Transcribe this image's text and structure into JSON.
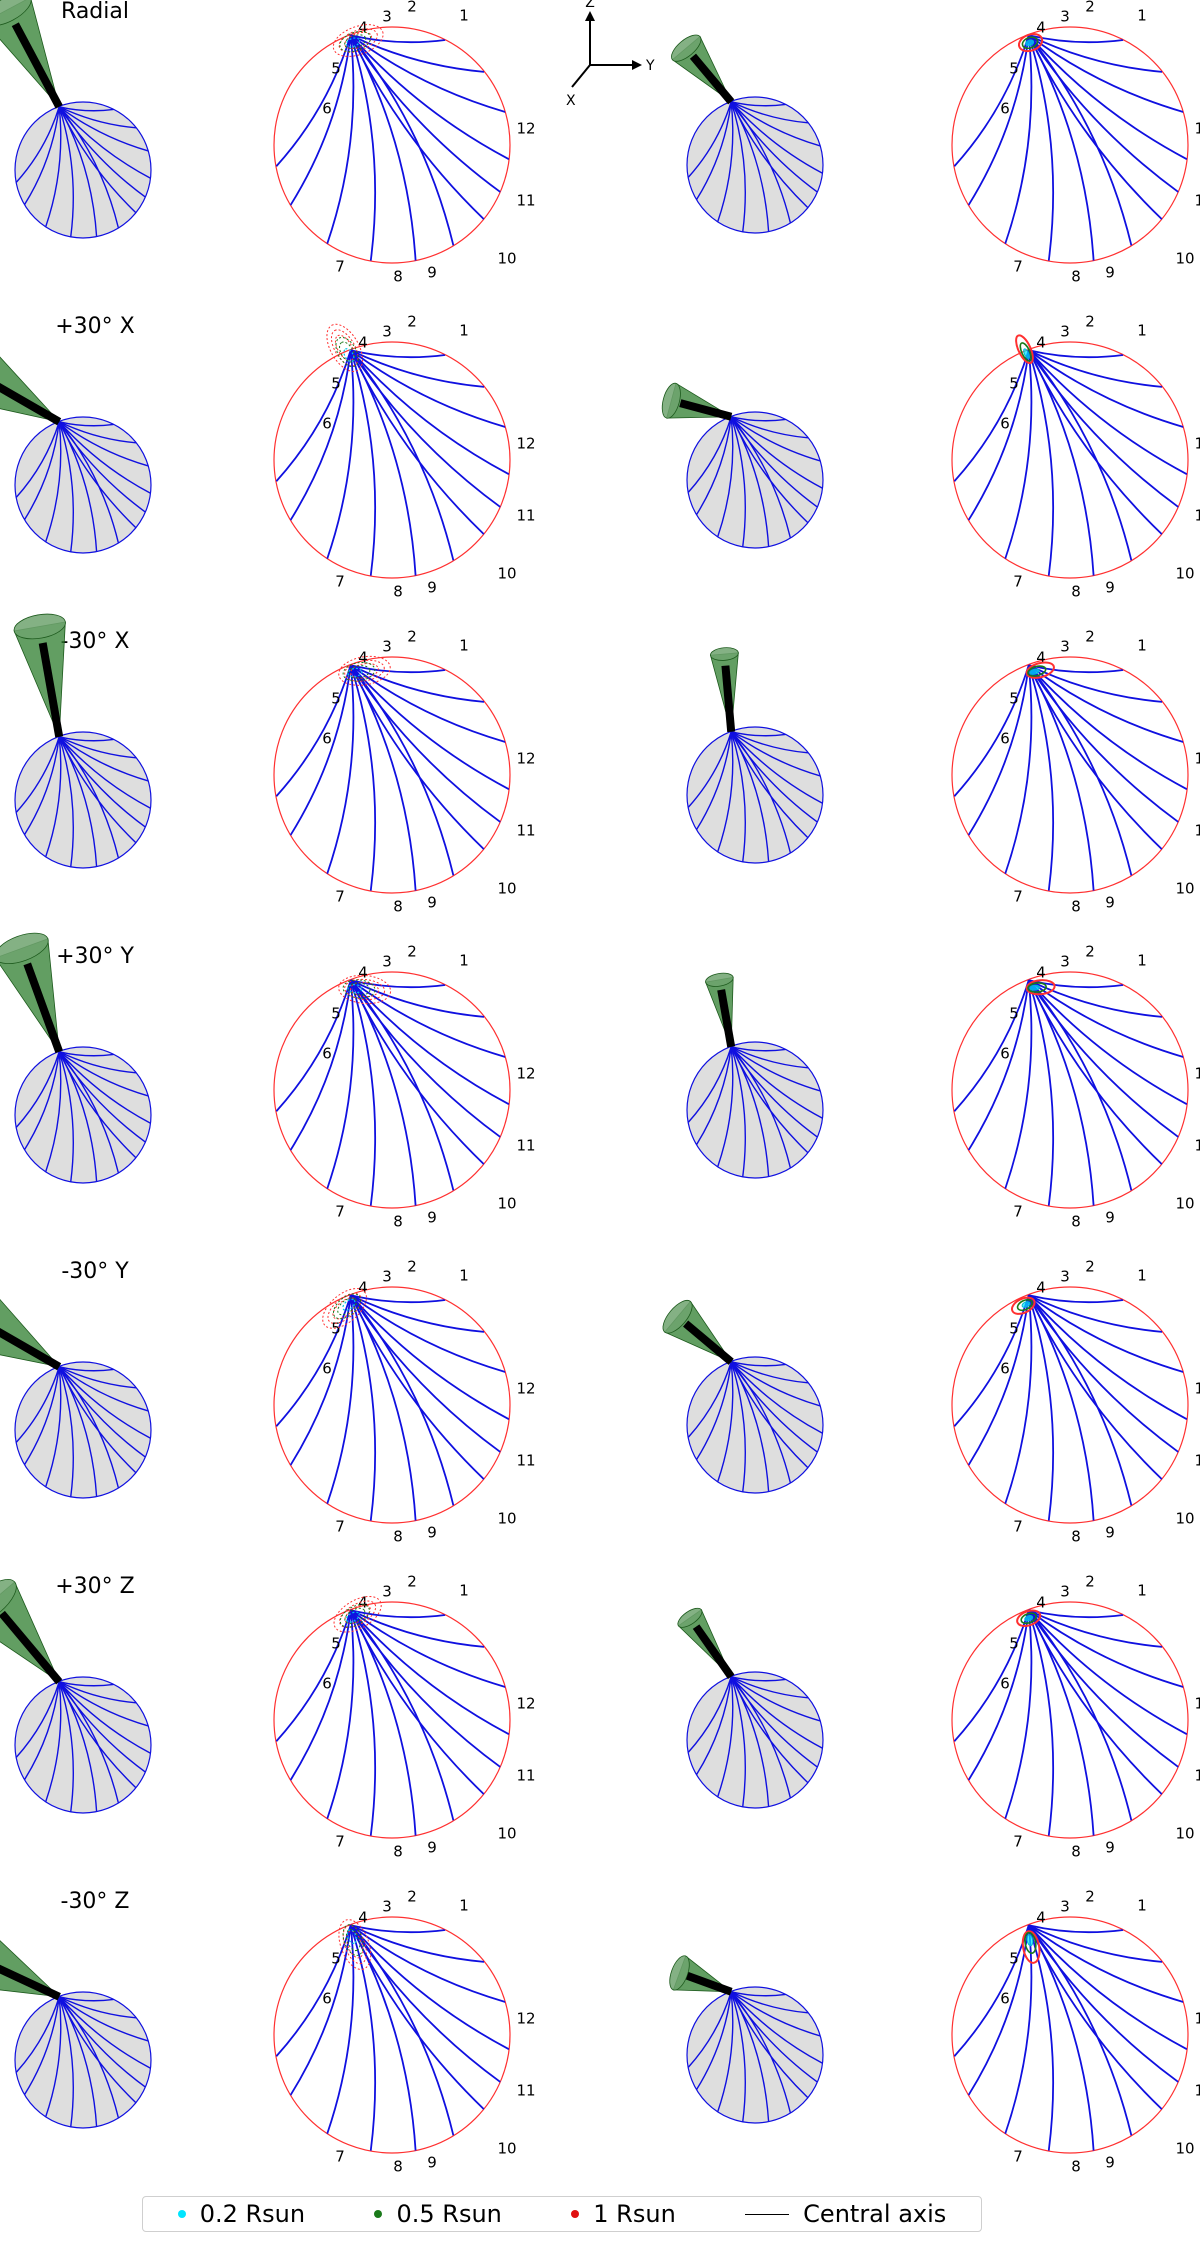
{
  "rows": [
    {
      "label": "Radial"
    },
    {
      "label": "+30° X"
    },
    {
      "label": "-30° X"
    },
    {
      "label": "+30° Y"
    },
    {
      "label": "-30° Y"
    },
    {
      "label": "+30° Z"
    },
    {
      "label": "-30° Z"
    }
  ],
  "sector_numbers": [
    "1",
    "2",
    "3",
    "4",
    "5",
    "6",
    "7",
    "8",
    "9",
    "10",
    "11",
    "12"
  ],
  "axes_triad": {
    "z": "Z",
    "y": "Y",
    "x": "X"
  },
  "legend": [
    {
      "label": "0.2 Rsun",
      "color": "#00e5ff",
      "kind": "dot"
    },
    {
      "label": "0.5 Rsun",
      "color": "#1a7a1a",
      "kind": "dot"
    },
    {
      "label": "1 Rsun",
      "color": "#e01010",
      "kind": "dot"
    },
    {
      "label": "Central axis",
      "color": "#000000",
      "kind": "line"
    }
  ],
  "colors": {
    "sphere_fill": "#dedede",
    "meridian": "#1010e0",
    "limb": "#ff3030",
    "cone": "#2e7d2e",
    "axis": "#000000"
  }
}
